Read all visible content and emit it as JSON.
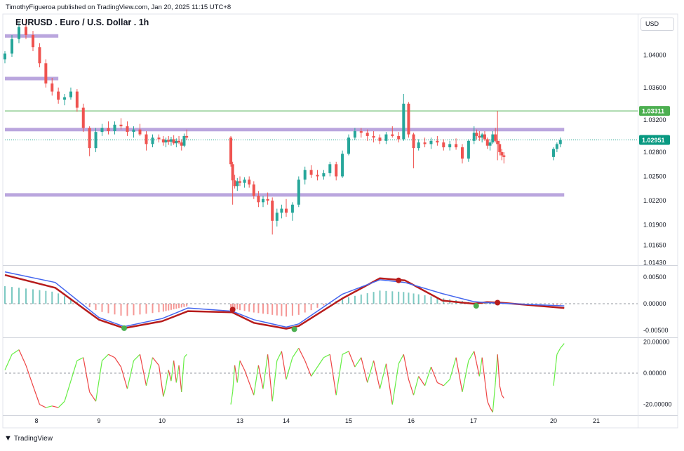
{
  "header": {
    "published": "TimothyFigueroa published on TradingView.com, Jan 20, 2025 11:15 UTC+8",
    "symbol_title": "EURUSD . Euro / U.S. Dollar . 1h",
    "currency": "USD",
    "brand": "TradingView"
  },
  "colors": {
    "up": "#26a69a",
    "down": "#ef5350",
    "zone": "#b39ddb",
    "hline": "#4caf50",
    "last_price": "#089981",
    "fast_line": "#4466ee",
    "slow_line_up": "#4caf50",
    "slow_line_down": "#b71c1c",
    "osc_up": "#66ee44",
    "osc_down": "#ee4444"
  },
  "chart_data": [
    {
      "type": "candlestick",
      "title": "EURUSD . Euro / U.S. Dollar . 1h",
      "x_ticks": [
        "8",
        "9",
        "10",
        "13",
        "14",
        "15",
        "16",
        "17",
        "20",
        "21"
      ],
      "y_ticks": [
        "1.04000",
        "1.03600",
        "1.03200",
        "1.02800",
        "1.02500",
        "1.02200",
        "1.01900",
        "1.01650",
        "1.01430"
      ],
      "ylim": [
        1.0141,
        1.0451
      ],
      "price_labels": [
        {
          "label": "1.03311",
          "value": 1.03311,
          "kind": "hline"
        },
        {
          "label": "1.02951",
          "value": 1.02951,
          "kind": "last"
        }
      ],
      "zones": [
        {
          "price": 1.04239,
          "start_day": 7.55,
          "end_day": 8.35
        },
        {
          "price": 1.03711,
          "start_day": 7.55,
          "end_day": 8.35
        },
        {
          "price": 1.03079,
          "start_day": 7.55,
          "end_day": 20.25
        },
        {
          "price": 1.02271,
          "start_day": 7.55,
          "end_day": 20.25
        }
      ],
      "ohlc": [
        [
          7.55,
          1.0395,
          1.0405,
          1.039,
          1.0402
        ],
        [
          7.65,
          1.0402,
          1.0425,
          1.0398,
          1.042
        ],
        [
          7.75,
          1.042,
          1.044,
          1.0415,
          1.0435
        ],
        [
          7.85,
          1.0435,
          1.0445,
          1.042,
          1.0425
        ],
        [
          7.95,
          1.0425,
          1.043,
          1.0405,
          1.041
        ],
        [
          8.05,
          1.041,
          1.0415,
          1.0385,
          1.039
        ],
        [
          8.15,
          1.039,
          1.0395,
          1.036,
          1.0365
        ],
        [
          8.25,
          1.0365,
          1.0372,
          1.035,
          1.0355
        ],
        [
          8.35,
          1.0355,
          1.036,
          1.034,
          1.0345
        ],
        [
          8.45,
          1.0345,
          1.0352,
          1.0338,
          1.0348
        ],
        [
          8.55,
          1.0348,
          1.036,
          1.0345,
          1.0355
        ],
        [
          8.65,
          1.0355,
          1.0358,
          1.033,
          1.0335
        ],
        [
          8.75,
          1.0335,
          1.034,
          1.0305,
          1.031
        ],
        [
          8.85,
          1.031,
          1.0312,
          1.0275,
          1.0285
        ],
        [
          8.95,
          1.0285,
          1.031,
          1.028,
          1.0305
        ],
        [
          9.05,
          1.0305,
          1.0315,
          1.03,
          1.031
        ],
        [
          9.15,
          1.031,
          1.0318,
          1.0302,
          1.0306
        ],
        [
          9.25,
          1.0306,
          1.0318,
          1.0302,
          1.0314
        ],
        [
          9.35,
          1.0314,
          1.0322,
          1.0308,
          1.0312
        ],
        [
          9.45,
          1.0312,
          1.0318,
          1.03,
          1.0305
        ],
        [
          9.55,
          1.0305,
          1.0312,
          1.0298,
          1.0308
        ],
        [
          9.65,
          1.0308,
          1.0315,
          1.03,
          1.0302
        ],
        [
          9.75,
          1.0302,
          1.0306,
          1.0282,
          1.029
        ],
        [
          9.85,
          1.029,
          1.0302,
          1.0286,
          1.0298
        ],
        [
          9.95,
          1.0298,
          1.0302,
          1.0292,
          1.0296
        ],
        [
          10.05,
          1.0296,
          1.03,
          1.0288,
          1.0292
        ],
        [
          10.15,
          1.0292,
          1.0298,
          1.0286,
          1.0295
        ],
        [
          10.25,
          1.0295,
          1.03,
          1.0289,
          1.0293
        ],
        [
          10.35,
          1.0293,
          1.0299,
          1.0288,
          1.0296
        ],
        [
          10.45,
          1.0296,
          1.0301,
          1.0289,
          1.0291
        ],
        [
          10.55,
          1.0291,
          1.0297,
          1.0286,
          1.0294
        ],
        [
          10.65,
          1.0294,
          1.03,
          1.029,
          1.0292
        ],
        [
          10.75,
          1.0292,
          1.0296,
          1.0282,
          1.0288
        ],
        [
          10.85,
          1.0288,
          1.0303,
          1.0286,
          1.03
        ],
        [
          10.95,
          1.03,
          1.0308,
          1.0295,
          1.0298
        ],
        [
          12.65,
          1.0298,
          1.03,
          1.0262,
          1.0265
        ],
        [
          12.72,
          1.0265,
          1.0268,
          1.0215,
          1.0245
        ],
        [
          12.8,
          1.0245,
          1.0252,
          1.0235,
          1.0238
        ],
        [
          12.9,
          1.0238,
          1.0248,
          1.0232,
          1.0244
        ],
        [
          13.0,
          1.0244,
          1.025,
          1.0238,
          1.0242
        ],
        [
          13.1,
          1.0242,
          1.0249,
          1.0236,
          1.0246
        ],
        [
          13.2,
          1.0246,
          1.025,
          1.0236,
          1.024
        ],
        [
          13.3,
          1.024,
          1.0244,
          1.0222,
          1.0226
        ],
        [
          13.4,
          1.0226,
          1.0232,
          1.0212,
          1.0218
        ],
        [
          13.5,
          1.0218,
          1.0226,
          1.0212,
          1.0222
        ],
        [
          13.6,
          1.0222,
          1.023,
          1.0215,
          1.022
        ],
        [
          13.7,
          1.022,
          1.0224,
          1.0178,
          1.0195
        ],
        [
          13.8,
          1.0195,
          1.021,
          1.0188,
          1.0205
        ],
        [
          13.9,
          1.0205,
          1.0215,
          1.0198,
          1.021
        ],
        [
          14.0,
          1.021,
          1.0222,
          1.02,
          1.0205
        ],
        [
          14.1,
          1.0205,
          1.0218,
          1.0195,
          1.0215
        ],
        [
          14.2,
          1.0215,
          1.025,
          1.0212,
          1.0246
        ],
        [
          14.3,
          1.0246,
          1.0262,
          1.024,
          1.0258
        ],
        [
          14.4,
          1.0258,
          1.0264,
          1.0248,
          1.0252
        ],
        [
          14.5,
          1.0252,
          1.0258,
          1.0245,
          1.025
        ],
        [
          14.6,
          1.025,
          1.0258,
          1.0246,
          1.0254
        ],
        [
          14.7,
          1.0254,
          1.0268,
          1.025,
          1.0265
        ],
        [
          14.8,
          1.0265,
          1.0268,
          1.0245,
          1.025
        ],
        [
          14.9,
          1.025,
          1.0282,
          1.0248,
          1.0278
        ],
        [
          15.0,
          1.0278,
          1.0302,
          1.0276,
          1.0298
        ],
        [
          15.1,
          1.0298,
          1.031,
          1.0295,
          1.0306
        ],
        [
          15.2,
          1.0306,
          1.031,
          1.0298,
          1.0304
        ],
        [
          15.3,
          1.0304,
          1.0308,
          1.0294,
          1.03
        ],
        [
          15.4,
          1.03,
          1.0306,
          1.0292,
          1.0298
        ],
        [
          15.5,
          1.0298,
          1.0302,
          1.029,
          1.0294
        ],
        [
          15.6,
          1.0294,
          1.0305,
          1.029,
          1.0302
        ],
        [
          15.7,
          1.0302,
          1.0312,
          1.0298,
          1.03
        ],
        [
          15.8,
          1.03,
          1.0305,
          1.0292,
          1.0296
        ],
        [
          15.88,
          1.0296,
          1.0352,
          1.0294,
          1.034
        ],
        [
          15.96,
          1.034,
          1.0342,
          1.0298,
          1.0302
        ],
        [
          16.04,
          1.0302,
          1.0304,
          1.026,
          1.0285
        ],
        [
          16.12,
          1.0285,
          1.0296,
          1.0282,
          1.0292
        ],
        [
          16.22,
          1.0292,
          1.0298,
          1.0286,
          1.029
        ],
        [
          16.32,
          1.029,
          1.0298,
          1.0284,
          1.0294
        ],
        [
          16.42,
          1.0294,
          1.03,
          1.0288,
          1.0292
        ],
        [
          16.52,
          1.0292,
          1.0296,
          1.0282,
          1.0286
        ],
        [
          16.62,
          1.0286,
          1.0294,
          1.0282,
          1.029
        ],
        [
          16.72,
          1.029,
          1.0297,
          1.0283,
          1.0286
        ],
        [
          16.82,
          1.0286,
          1.029,
          1.0266,
          1.0272
        ],
        [
          16.92,
          1.0272,
          1.0296,
          1.0268,
          1.0294
        ],
        [
          17.02,
          1.0294,
          1.0312,
          1.029,
          1.0304
        ],
        [
          17.12,
          1.0304,
          1.0308,
          1.0296,
          1.03
        ],
        [
          17.22,
          1.03,
          1.0306,
          1.0294,
          1.0298
        ],
        [
          17.32,
          1.0298,
          1.0304,
          1.0292,
          1.0302
        ],
        [
          17.42,
          1.0302,
          1.0306,
          1.0294,
          1.0296
        ],
        [
          17.52,
          1.0296,
          1.0298,
          1.0284,
          1.0288
        ],
        [
          17.62,
          1.0288,
          1.0296,
          1.0282,
          1.0292
        ],
        [
          17.72,
          1.0292,
          1.0306,
          1.029,
          1.0302
        ],
        [
          17.82,
          1.0302,
          1.031,
          1.0292,
          1.0294
        ],
        [
          17.9,
          1.0294,
          1.0331,
          1.027,
          1.029
        ],
        [
          17.98,
          1.029,
          1.0294,
          1.0276,
          1.028
        ],
        [
          18.06,
          1.028,
          1.0284,
          1.027,
          1.0276
        ],
        [
          18.14,
          1.0276,
          1.028,
          1.0266,
          1.0274
        ],
        [
          20.0,
          1.0274,
          1.0286,
          1.027,
          1.0284
        ],
        [
          20.08,
          1.0284,
          1.0292,
          1.028,
          1.029
        ],
        [
          20.16,
          1.029,
          1.0298,
          1.0286,
          1.02951
        ]
      ]
    },
    {
      "type": "line",
      "y_ticks": [
        "0.00500",
        "0.00000",
        "-0.00500"
      ],
      "ylim": [
        -0.0062,
        0.007
      ],
      "fast_line": [
        [
          7.55,
          0.006
        ],
        [
          8.3,
          0.004
        ],
        [
          9.0,
          -0.0026
        ],
        [
          9.4,
          -0.0043
        ],
        [
          10.0,
          -0.0028
        ],
        [
          11.0,
          -0.0008
        ],
        [
          12.7,
          -0.0014
        ],
        [
          13.3,
          -0.003
        ],
        [
          14.0,
          -0.0044
        ],
        [
          14.2,
          -0.0038
        ],
        [
          14.9,
          0.0018
        ],
        [
          15.5,
          0.0045
        ],
        [
          15.9,
          0.004
        ],
        [
          16.5,
          0.0019
        ],
        [
          17.0,
          0.0004
        ],
        [
          17.5,
          0.0002
        ],
        [
          18.0,
          0.0001
        ],
        [
          20.25,
          -0.0004
        ]
      ],
      "slow_line": [
        [
          7.55,
          0.0054
        ],
        [
          8.3,
          0.003
        ],
        [
          9.0,
          -0.003
        ],
        [
          9.4,
          -0.0046
        ],
        [
          10.0,
          -0.0033
        ],
        [
          11.0,
          -0.0014
        ],
        [
          12.7,
          -0.0016
        ],
        [
          13.3,
          -0.0036
        ],
        [
          14.0,
          -0.0047
        ],
        [
          14.2,
          -0.0042
        ],
        [
          14.9,
          0.001
        ],
        [
          15.5,
          0.0048
        ],
        [
          15.9,
          0.0044
        ],
        [
          16.5,
          0.0006
        ],
        [
          17.0,
          0.0
        ],
        [
          17.5,
          0.0003
        ],
        [
          18.0,
          0.0002
        ],
        [
          20.25,
          -0.0008
        ]
      ],
      "cross_markers": [
        {
          "x": 9.4,
          "y": -0.0046,
          "dir": "up"
        },
        {
          "x": 12.72,
          "y": -0.0011,
          "dir": "down"
        },
        {
          "x": 14.13,
          "y": -0.0048,
          "dir": "up"
        },
        {
          "x": 15.8,
          "y": 0.0044,
          "dir": "down"
        },
        {
          "x": 17.1,
          "y": -0.0004,
          "dir": "up"
        },
        {
          "x": 17.9,
          "y": 0.0002,
          "dir": "down"
        }
      ]
    },
    {
      "type": "line",
      "y_ticks": [
        "20.00000",
        "0.00000",
        "-20.00000"
      ],
      "ylim": [
        -26,
        22
      ],
      "values": [
        [
          7.55,
          2
        ],
        [
          7.65,
          12
        ],
        [
          7.75,
          15
        ],
        [
          7.85,
          5
        ],
        [
          7.95,
          -8
        ],
        [
          8.05,
          -20
        ],
        [
          8.15,
          -22
        ],
        [
          8.25,
          -21
        ],
        [
          8.35,
          -22
        ],
        [
          8.45,
          -18
        ],
        [
          8.55,
          -5
        ],
        [
          8.65,
          8
        ],
        [
          8.75,
          10
        ],
        [
          8.85,
          -12
        ],
        [
          8.95,
          -18
        ],
        [
          9.05,
          8
        ],
        [
          9.15,
          12
        ],
        [
          9.25,
          10
        ],
        [
          9.35,
          4
        ],
        [
          9.45,
          -10
        ],
        [
          9.55,
          8
        ],
        [
          9.65,
          12
        ],
        [
          9.75,
          -8
        ],
        [
          9.85,
          10
        ],
        [
          9.95,
          5
        ],
        [
          10.05,
          -15
        ],
        [
          10.15,
          -8
        ],
        [
          10.25,
          2
        ],
        [
          10.35,
          -5
        ],
        [
          10.45,
          8
        ],
        [
          10.55,
          -6
        ],
        [
          10.65,
          5
        ],
        [
          10.75,
          -12
        ],
        [
          10.85,
          10
        ],
        [
          10.95,
          12
        ],
        [
          12.65,
          -20
        ],
        [
          12.72,
          -12
        ],
        [
          12.8,
          5
        ],
        [
          12.9,
          -6
        ],
        [
          13.0,
          8
        ],
        [
          13.1,
          2
        ],
        [
          13.2,
          -6
        ],
        [
          13.3,
          -14
        ],
        [
          13.4,
          5
        ],
        [
          13.5,
          -10
        ],
        [
          13.6,
          12
        ],
        [
          13.7,
          -18
        ],
        [
          13.8,
          8
        ],
        [
          13.9,
          14
        ],
        [
          14.0,
          -4
        ],
        [
          14.1,
          10
        ],
        [
          14.2,
          16
        ],
        [
          14.3,
          8
        ],
        [
          14.4,
          -2
        ],
        [
          14.5,
          4
        ],
        [
          14.6,
          10
        ],
        [
          14.7,
          12
        ],
        [
          14.8,
          -14
        ],
        [
          14.9,
          12
        ],
        [
          15.0,
          14
        ],
        [
          15.1,
          4
        ],
        [
          15.2,
          10
        ],
        [
          15.3,
          -6
        ],
        [
          15.4,
          8
        ],
        [
          15.5,
          -10
        ],
        [
          15.6,
          6
        ],
        [
          15.7,
          -20
        ],
        [
          15.8,
          6
        ],
        [
          15.88,
          12
        ],
        [
          15.96,
          -4
        ],
        [
          16.04,
          -14
        ],
        [
          16.12,
          -2
        ],
        [
          16.22,
          -8
        ],
        [
          16.32,
          4
        ],
        [
          16.42,
          -6
        ],
        [
          16.52,
          -8
        ],
        [
          16.62,
          -4
        ],
        [
          16.72,
          10
        ],
        [
          16.82,
          -12
        ],
        [
          16.92,
          8
        ],
        [
          17.02,
          14
        ],
        [
          17.12,
          6
        ],
        [
          17.22,
          -2
        ],
        [
          17.32,
          10
        ],
        [
          17.42,
          -4
        ],
        [
          17.52,
          -18
        ],
        [
          17.62,
          -22
        ],
        [
          17.72,
          -25
        ],
        [
          17.82,
          -6
        ],
        [
          17.9,
          12
        ],
        [
          17.98,
          -8
        ],
        [
          18.06,
          -14
        ],
        [
          18.14,
          -16
        ],
        [
          20.0,
          -8
        ],
        [
          20.08,
          12
        ],
        [
          20.16,
          16
        ],
        [
          20.25,
          19
        ]
      ]
    }
  ]
}
